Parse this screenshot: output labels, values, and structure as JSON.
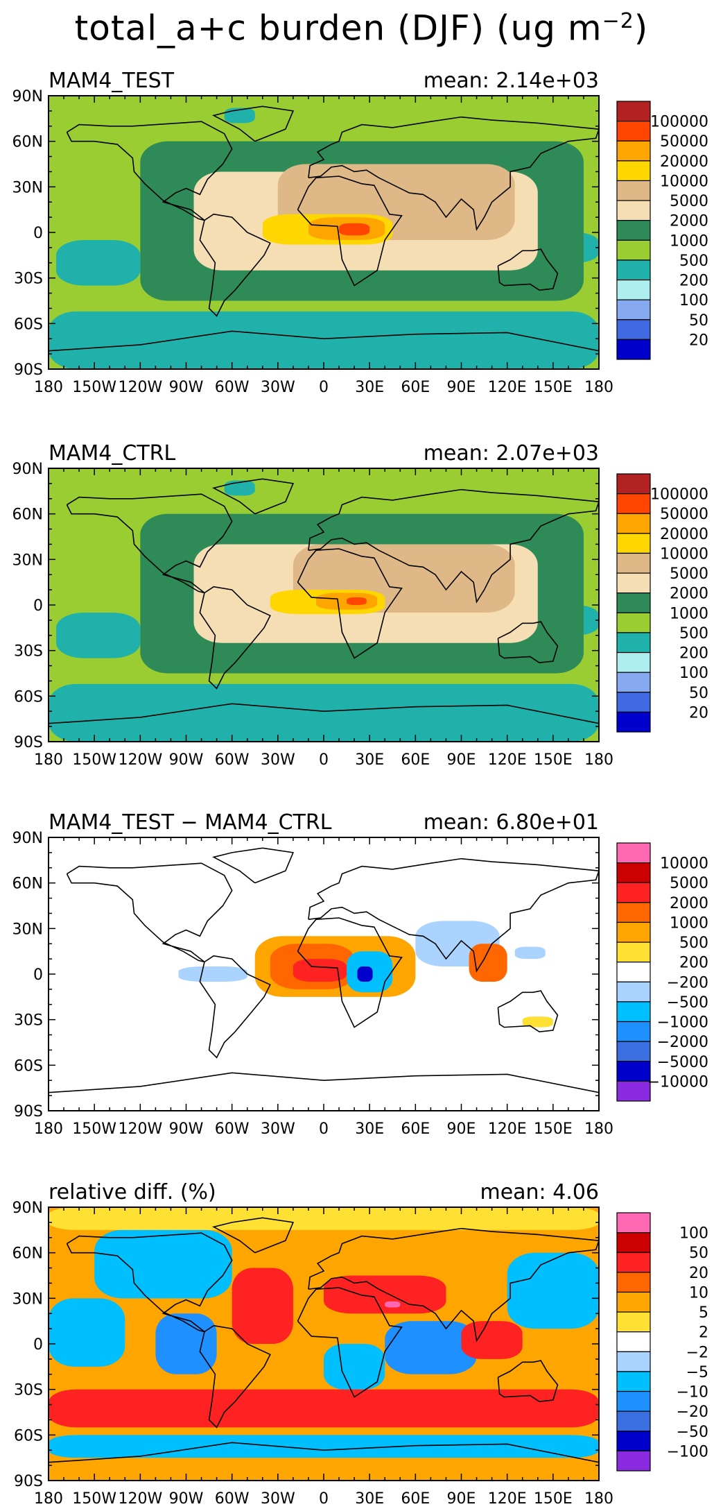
{
  "figure_title": "total_a+c burden (DJF) (ug m",
  "figure_title_exp": "−2",
  "figure_title_close": ")",
  "lon_ticks": [
    "180",
    "150W",
    "120W",
    "90W",
    "60W",
    "30W",
    "0",
    "30E",
    "60E",
    "90E",
    "120E",
    "150E",
    "180"
  ],
  "lat_ticks": [
    "90N",
    "60N",
    "30N",
    "0",
    "30S",
    "60S",
    "90S"
  ],
  "chart_data": [
    {
      "type": "heatmap",
      "title": "MAM4_TEST",
      "stat_label": "mean: 2.14e+03",
      "colorbar": {
        "labels": [
          "100000",
          "50000",
          "20000",
          "10000",
          "5000",
          "2000",
          "1000",
          "500",
          "200",
          "100",
          "50",
          "20"
        ],
        "colors": [
          "#b22222",
          "#ff4500",
          "#ffa500",
          "#ffd700",
          "#deb887",
          "#f5deb3",
          "#2e8b57",
          "#9acd32",
          "#20b2aa",
          "#afeeee",
          "#87a9f0",
          "#4169e1",
          "#0000cd"
        ]
      },
      "background": "#9acd32",
      "regions": [
        {
          "level": "500",
          "color": "#20b2aa",
          "lon": [
            -180,
            180
          ],
          "lat": [
            -90,
            -52
          ]
        },
        {
          "level": "500",
          "color": "#20b2aa",
          "lon": [
            -175,
            -120
          ],
          "lat": [
            -35,
            -5
          ]
        },
        {
          "level": "500",
          "color": "#20b2aa",
          "lon": [
            -65,
            -45
          ],
          "lat": [
            72,
            82
          ]
        },
        {
          "level": "500",
          "color": "#20b2aa",
          "lon": [
            135,
            180
          ],
          "lat": [
            -20,
            0
          ]
        },
        {
          "level": "1000",
          "color": "#2e8b57",
          "lon": [
            -120,
            170
          ],
          "lat": [
            -45,
            60
          ]
        },
        {
          "level": "2000",
          "color": "#f5deb3",
          "lon": [
            -85,
            140
          ],
          "lat": [
            -25,
            40
          ]
        },
        {
          "level": "5000",
          "color": "#deb887",
          "lon": [
            -30,
            125
          ],
          "lat": [
            -5,
            45
          ]
        },
        {
          "level": "10000",
          "color": "#ffd700",
          "lon": [
            -40,
            45
          ],
          "lat": [
            -8,
            12
          ]
        },
        {
          "level": "20000",
          "color": "#ffa500",
          "lon": [
            -10,
            40
          ],
          "lat": [
            -5,
            10
          ]
        },
        {
          "level": "50000",
          "color": "#ff4500",
          "lon": [
            10,
            30
          ],
          "lat": [
            -2,
            6
          ]
        }
      ]
    },
    {
      "type": "heatmap",
      "title": "MAM4_CTRL",
      "stat_label": "mean: 2.07e+03",
      "colorbar": {
        "labels": [
          "100000",
          "50000",
          "20000",
          "10000",
          "5000",
          "2000",
          "1000",
          "500",
          "200",
          "100",
          "50",
          "20"
        ],
        "colors": [
          "#b22222",
          "#ff4500",
          "#ffa500",
          "#ffd700",
          "#deb887",
          "#f5deb3",
          "#2e8b57",
          "#9acd32",
          "#20b2aa",
          "#afeeee",
          "#87a9f0",
          "#4169e1",
          "#0000cd"
        ]
      },
      "background": "#9acd32",
      "regions": [
        {
          "level": "500",
          "color": "#20b2aa",
          "lon": [
            -180,
            180
          ],
          "lat": [
            -90,
            -52
          ]
        },
        {
          "level": "500",
          "color": "#20b2aa",
          "lon": [
            -175,
            -120
          ],
          "lat": [
            -35,
            -5
          ]
        },
        {
          "level": "500",
          "color": "#20b2aa",
          "lon": [
            -65,
            -45
          ],
          "lat": [
            72,
            82
          ]
        },
        {
          "level": "500",
          "color": "#20b2aa",
          "lon": [
            135,
            180
          ],
          "lat": [
            -20,
            0
          ]
        },
        {
          "level": "1000",
          "color": "#2e8b57",
          "lon": [
            -120,
            170
          ],
          "lat": [
            -45,
            60
          ]
        },
        {
          "level": "2000",
          "color": "#f5deb3",
          "lon": [
            -85,
            140
          ],
          "lat": [
            -25,
            40
          ]
        },
        {
          "level": "5000",
          "color": "#deb887",
          "lon": [
            -20,
            125
          ],
          "lat": [
            -5,
            40
          ]
        },
        {
          "level": "10000",
          "color": "#ffd700",
          "lon": [
            -35,
            40
          ],
          "lat": [
            -6,
            10
          ]
        },
        {
          "level": "20000",
          "color": "#ffa500",
          "lon": [
            -5,
            35
          ],
          "lat": [
            -3,
            8
          ]
        },
        {
          "level": "50000",
          "color": "#ff4500",
          "lon": [
            15,
            28
          ],
          "lat": [
            0,
            5
          ]
        }
      ]
    },
    {
      "type": "heatmap",
      "title": "MAM4_TEST − MAM4_CTRL",
      "stat_label": "mean: 6.80e+01",
      "colorbar": {
        "labels": [
          "10000",
          "5000",
          "2000",
          "1000",
          "500",
          "200",
          "−200",
          "−500",
          "−1000",
          "−2000",
          "−5000",
          "−10000"
        ],
        "colors": [
          "#ff69b4",
          "#cc0000",
          "#ff2222",
          "#ff6600",
          "#ffa500",
          "#ffe033",
          "#ffffff",
          "#aad4ff",
          "#00bfff",
          "#1e90ff",
          "#3b6fe0",
          "#0000cd",
          "#8a2be2"
        ]
      },
      "background": "#ffffff",
      "regions": [
        {
          "level": "500",
          "color": "#ffa500",
          "lon": [
            -45,
            60
          ],
          "lat": [
            -15,
            25
          ]
        },
        {
          "level": "1000",
          "color": "#ff6600",
          "lon": [
            -35,
            20
          ],
          "lat": [
            -10,
            20
          ]
        },
        {
          "level": "2000",
          "color": "#ff2222",
          "lon": [
            -20,
            15
          ],
          "lat": [
            -5,
            10
          ]
        },
        {
          "level": "−500",
          "color": "#aad4ff",
          "lon": [
            -95,
            -50
          ],
          "lat": [
            -5,
            5
          ]
        },
        {
          "level": "−1000",
          "color": "#00bfff",
          "lon": [
            15,
            45
          ],
          "lat": [
            -12,
            15
          ]
        },
        {
          "level": "−5000",
          "color": "#0000cd",
          "lon": [
            22,
            32
          ],
          "lat": [
            -5,
            5
          ]
        },
        {
          "level": "−200",
          "color": "#aad4ff",
          "lon": [
            60,
            115
          ],
          "lat": [
            5,
            35
          ]
        },
        {
          "level": "1000",
          "color": "#ff6600",
          "lon": [
            95,
            120
          ],
          "lat": [
            -5,
            20
          ]
        },
        {
          "level": "200",
          "color": "#ffe033",
          "lon": [
            130,
            150
          ],
          "lat": [
            -35,
            -28
          ]
        },
        {
          "level": "−500",
          "color": "#aad4ff",
          "lon": [
            125,
            145
          ],
          "lat": [
            10,
            18
          ]
        }
      ]
    },
    {
      "type": "heatmap",
      "title": "relative diff. (%)",
      "stat_label": "mean:  4.06",
      "colorbar": {
        "labels": [
          "100",
          "50",
          "20",
          "10",
          "5",
          "2",
          "−2",
          "−5",
          "−10",
          "−20",
          "−50",
          "−100"
        ],
        "colors": [
          "#ff69b4",
          "#cc0000",
          "#ff2222",
          "#ff6600",
          "#ffa500",
          "#ffe033",
          "#ffffff",
          "#aad4ff",
          "#00bfff",
          "#1e90ff",
          "#3b6fe0",
          "#0000cd",
          "#8a2be2"
        ]
      },
      "background": "#ffa500",
      "regions": [
        {
          "level": "5",
          "color": "#ffe033",
          "lon": [
            -180,
            180
          ],
          "lat": [
            75,
            90
          ]
        },
        {
          "level": "−10",
          "color": "#00bfff",
          "lon": [
            -150,
            -60
          ],
          "lat": [
            30,
            75
          ]
        },
        {
          "level": "−10",
          "color": "#00bfff",
          "lon": [
            -180,
            -130
          ],
          "lat": [
            -15,
            30
          ]
        },
        {
          "level": "20",
          "color": "#ff2222",
          "lon": [
            -180,
            180
          ],
          "lat": [
            -55,
            -30
          ]
        },
        {
          "level": "−10",
          "color": "#00bfff",
          "lon": [
            -180,
            180
          ],
          "lat": [
            -75,
            -60
          ]
        },
        {
          "level": "20",
          "color": "#ff2222",
          "lon": [
            -60,
            -20
          ],
          "lat": [
            0,
            50
          ]
        },
        {
          "level": "−20",
          "color": "#1e90ff",
          "lon": [
            -110,
            -70
          ],
          "lat": [
            -20,
            20
          ]
        },
        {
          "level": "20",
          "color": "#ff2222",
          "lon": [
            0,
            80
          ],
          "lat": [
            20,
            45
          ]
        },
        {
          "level": "−20",
          "color": "#1e90ff",
          "lon": [
            40,
            100
          ],
          "lat": [
            -20,
            15
          ]
        },
        {
          "level": "−10",
          "color": "#00bfff",
          "lon": [
            120,
            180
          ],
          "lat": [
            10,
            60
          ]
        },
        {
          "level": "20",
          "color": "#ff2222",
          "lon": [
            90,
            130
          ],
          "lat": [
            -10,
            15
          ]
        },
        {
          "level": "−10",
          "color": "#00bfff",
          "lon": [
            0,
            40
          ],
          "lat": [
            -30,
            0
          ]
        },
        {
          "level": "100",
          "color": "#ff69b4",
          "lon": [
            40,
            50
          ],
          "lat": [
            24,
            28
          ]
        }
      ]
    }
  ]
}
